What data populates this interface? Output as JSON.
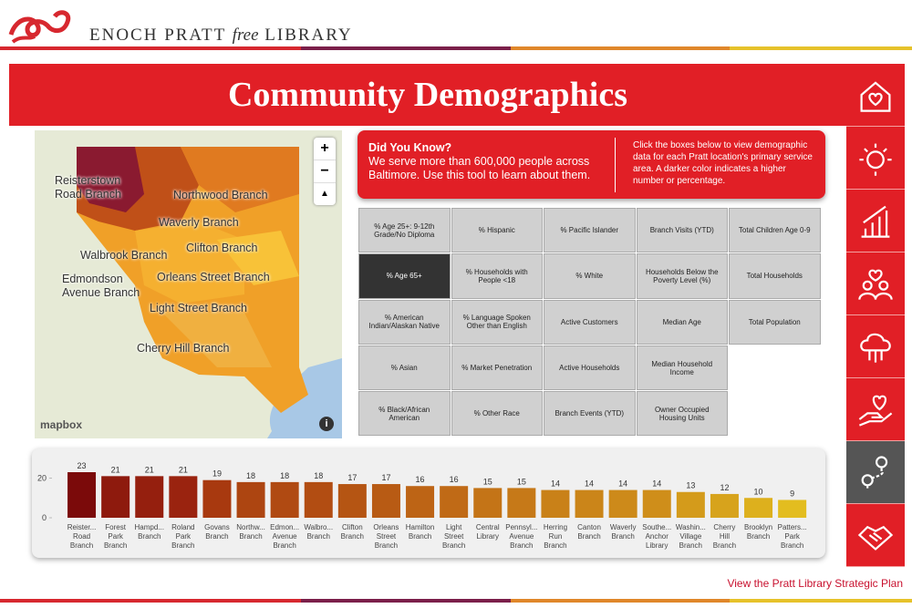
{
  "header": {
    "logo_text": "ENOCH PRATT",
    "logo_free": "free",
    "logo_library": "LIBRARY"
  },
  "banner": {
    "title": "Community Demographics"
  },
  "info": {
    "heading": "Did You Know?",
    "text": "We serve more than 600,000 people across Baltimore. Use this tool to learn about them.",
    "instructions": "Click the boxes below to view demographic data for each Pratt location's primary service area. A darker color indicates a higher number or percentage."
  },
  "map": {
    "labels": [
      "Reisterstown\nRoad Branch",
      "Northwood Branch",
      "Waverly Branch",
      "Walbrook Branch",
      "Clifton Branch",
      "Edmondson\nAvenue Branch",
      "Orleans Street Branch",
      "Light Street Branch",
      "Cherry Hill Branch"
    ],
    "controls": [
      "+",
      "−"
    ],
    "attribution": "mapbox",
    "info": "i"
  },
  "buttons": {
    "rows": [
      [
        "% Age 25+: 9-12th Grade/No Diploma",
        "% Hispanic",
        "% Pacific Islander",
        "Branch Visits (YTD)",
        "Total Children Age 0-9"
      ],
      [
        "% Age 65+",
        "% Households with People <18",
        "% White",
        "Households Below the Poverty Level (%)",
        "Total Households"
      ],
      [
        "% American Indian/Alaskan Native",
        "% Language Spoken Other than English",
        "Active Customers",
        "Median Age",
        "Total Population"
      ],
      [
        "% Asian",
        "% Market Penetration",
        "Active Households",
        "Median Household Income"
      ],
      [
        "% Black/African American",
        "% Other Race",
        "Branch Events (YTD)",
        "Owner Occupied Housing Units"
      ]
    ]
  },
  "chart_data": {
    "type": "bar",
    "categories": [
      "Reister...\nRoad\nBranch",
      "Forest\nPark\nBranch",
      "Hampd...\nBranch",
      "Roland\nPark\nBranch",
      "Govans\nBranch",
      "Northw...\nBranch",
      "Edmon...\nAvenue\nBranch",
      "Walbro...\nBranch",
      "Clifton\nBranch",
      "Orleans\nStreet\nBranch",
      "Hamilton\nBranch",
      "Light\nStreet\nBranch",
      "Central\nLibrary",
      "Pennsyl...\nAvenue\nBranch",
      "Herring\nRun\nBranch",
      "Canton\nBranch",
      "Waverly\nBranch",
      "Southe...\nAnchor\nLibrary",
      "Washin...\nVillage\nBranch",
      "Cherry\nHill\nBranch",
      "Brooklyn\nBranch",
      "Patters...\nPark\nBranch"
    ],
    "values": [
      23,
      21,
      21,
      21,
      19,
      18,
      18,
      18,
      17,
      17,
      16,
      16,
      15,
      15,
      14,
      14,
      14,
      14,
      13,
      12,
      10,
      9
    ],
    "colors": [
      "#7b0a0a",
      "#8e1a0d",
      "#951f0e",
      "#9a230f",
      "#a8390f",
      "#ad4511",
      "#b04a12",
      "#b24d12",
      "#b55513",
      "#b85b14",
      "#bd6415",
      "#c06a16",
      "#c47417",
      "#c67918",
      "#c98118",
      "#cb8519",
      "#cd8a1a",
      "#cf8e1a",
      "#d49b1b",
      "#d7a31c",
      "#ddb01d",
      "#e3bd1f"
    ],
    "ylim": [
      0,
      23
    ],
    "yticks": [
      0,
      20
    ]
  },
  "footer": {
    "link": "View the Pratt Library Strategic Plan"
  }
}
